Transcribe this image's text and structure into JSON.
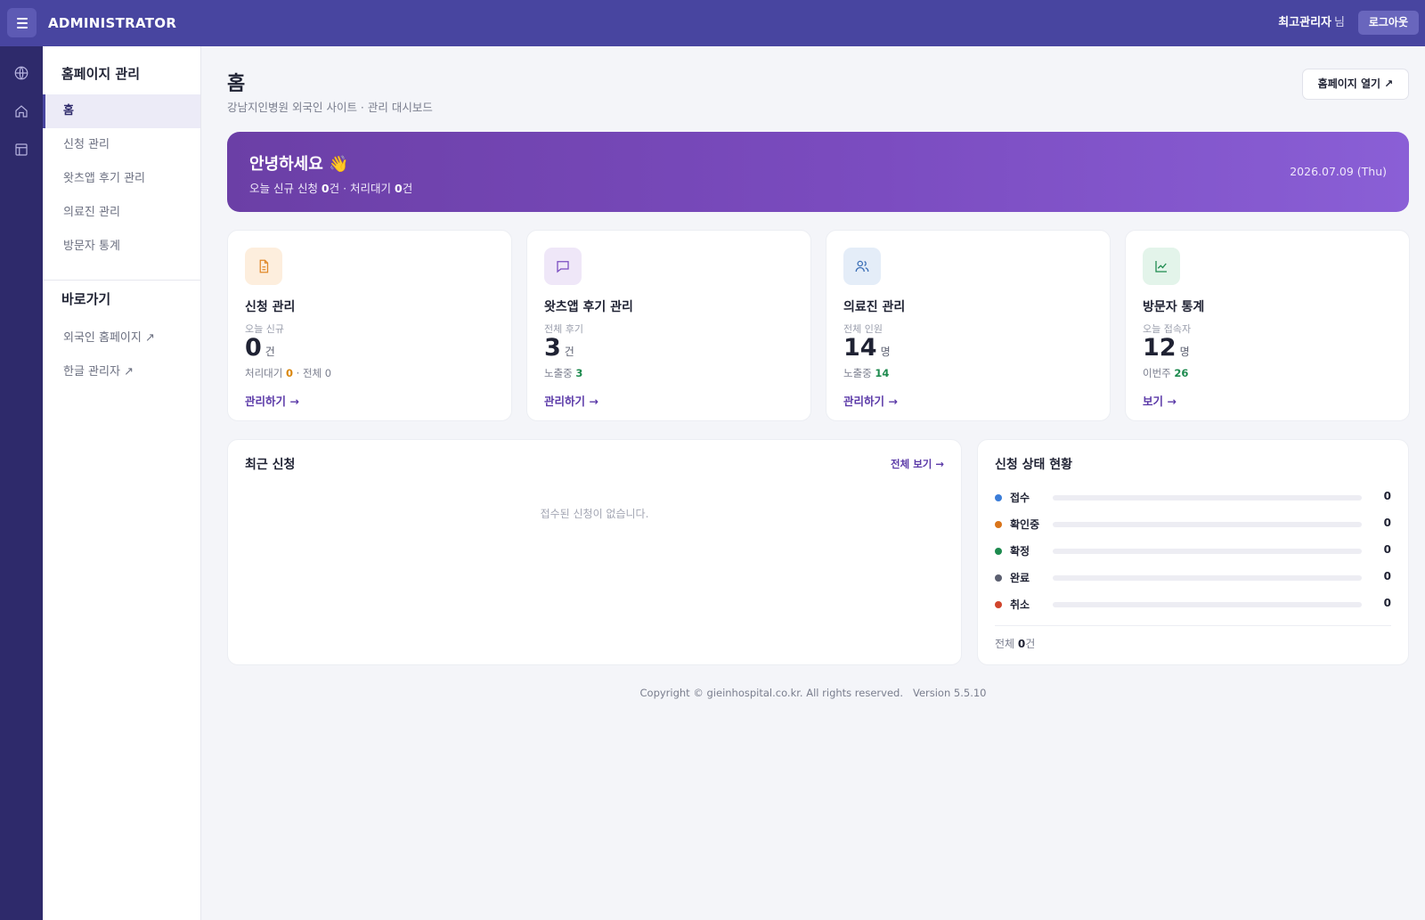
{
  "topbar": {
    "brand": "ADMINISTRATOR",
    "user_name": "최고관리자",
    "user_suffix": "님",
    "logout_label": "로그아웃"
  },
  "rail": {
    "icons": [
      "globe-icon",
      "home-icon",
      "layout-icon"
    ]
  },
  "sidenav": {
    "section_title": "홈페이지 관리",
    "items": [
      {
        "label": "홈",
        "active": true
      },
      {
        "label": "신청 관리"
      },
      {
        "label": "왓츠앱 후기 관리"
      },
      {
        "label": "의료진 관리"
      },
      {
        "label": "방문자 통계"
      }
    ],
    "shortcut_title": "바로가기",
    "shortcuts": [
      {
        "label": "외국인 홈페이지 ↗"
      },
      {
        "label": "한글 관리자 ↗"
      }
    ]
  },
  "header": {
    "title": "홈",
    "subtitle": "강남지인병원 외국인 사이트 · 관리 대시보드",
    "open_site_label": "홈페이지 열기 ↗"
  },
  "banner": {
    "greeting": "안녕하세요 👋",
    "sub_prefix": "오늘 신규 신청 ",
    "new_count": "0",
    "sub_mid": "건 · 처리대기 ",
    "pending_count": "0",
    "sub_suffix": "건",
    "date": "2026.07.09 (Thu)"
  },
  "cards": [
    {
      "icon": "document-icon",
      "title": "신청 관리",
      "label": "오늘 신규",
      "value": "0",
      "unit": "건",
      "meta_a_label": "처리대기 ",
      "meta_a_value": "0",
      "meta_b": " · 전체 0",
      "link": "관리하기 →"
    },
    {
      "icon": "chat-icon",
      "title": "왓츠앱 후기 관리",
      "label": "전체 후기",
      "value": "3",
      "unit": "건",
      "meta_a_label": "노출중 ",
      "meta_a_value": "3",
      "link": "관리하기 →"
    },
    {
      "icon": "users-icon",
      "title": "의료진 관리",
      "label": "전체 인원",
      "value": "14",
      "unit": "명",
      "meta_a_label": "노출중 ",
      "meta_a_value": "14",
      "link": "관리하기 →"
    },
    {
      "icon": "line-chart-icon",
      "title": "방문자 통계",
      "label": "오늘 접속자",
      "value": "12",
      "unit": "명",
      "meta_a_label": "이번주 ",
      "meta_a_value": "26",
      "link": "보기 →"
    }
  ],
  "recent": {
    "title": "최근 신청",
    "view_all": "전체 보기 →",
    "empty": "접수된 신청이 없습니다."
  },
  "status": {
    "title": "신청 상태 현황",
    "rows": [
      {
        "label": "접수",
        "count": "0",
        "fraction": 0,
        "color": "#3b7dd8"
      },
      {
        "label": "확인중",
        "count": "0",
        "fraction": 0,
        "color": "#d9741a"
      },
      {
        "label": "확정",
        "count": "0",
        "fraction": 0,
        "color": "#1d8a4e"
      },
      {
        "label": "완료",
        "count": "0",
        "fraction": 0,
        "color": "#5b5f70"
      },
      {
        "label": "취소",
        "count": "0",
        "fraction": 0,
        "color": "#d0452c"
      }
    ],
    "total_prefix": "전체 ",
    "total_value": "0",
    "total_suffix": "건"
  },
  "footer": {
    "copyright": "Copyright © gieinhospital.co.kr. All rights reserved.",
    "version": "Version 5.5.10"
  }
}
